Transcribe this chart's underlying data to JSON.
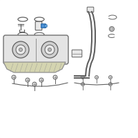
{
  "bg": "#ffffff",
  "border": "#d0d0d0",
  "lc": "#606060",
  "lc2": "#808080",
  "fill_light": "#e8e8e8",
  "fill_mid": "#d0d0d0",
  "fill_dark": "#b8b8b8",
  "blue1": "#4a8fd4",
  "blue2": "#6aaee8",
  "strap_fill": "#d4d4b0",
  "strap_edge": "#909090",
  "tank_fill": "#e4e4e4",
  "tank_edge": "#707070"
}
